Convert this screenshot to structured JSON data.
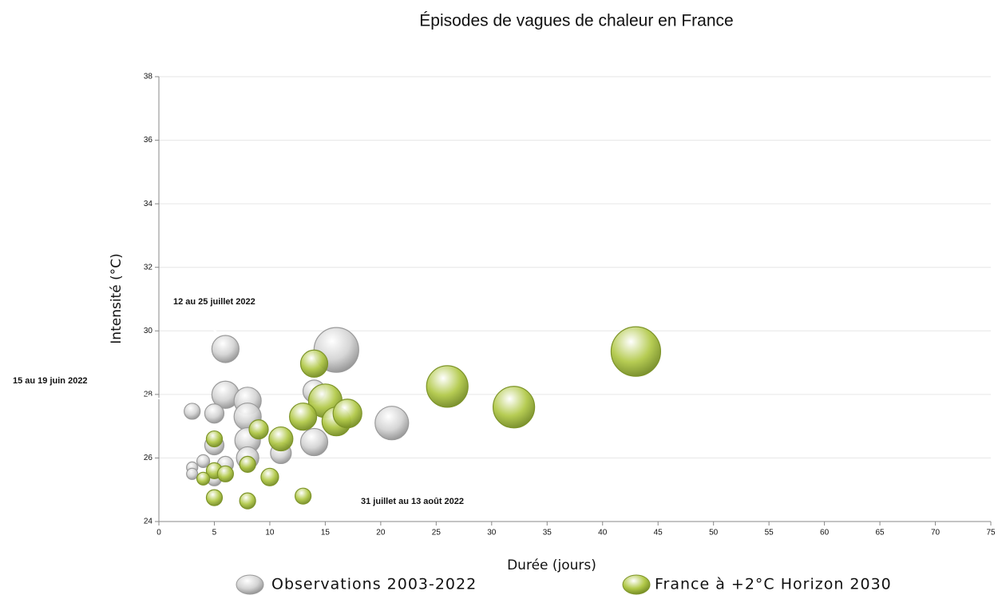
{
  "chart_data": {
    "type": "scatter",
    "title": "Épisodes de vagues de chaleur en France",
    "xlabel": "Durée  (jours)",
    "ylabel": "Intensité  (°C)",
    "xlim": [
      0,
      75
    ],
    "xticks": [
      0,
      5,
      10,
      15,
      20,
      25,
      30,
      35,
      40,
      45,
      50,
      55,
      60,
      65,
      70,
      75
    ],
    "ylim": [
      24,
      38
    ],
    "yticks": [
      24,
      26,
      28,
      30,
      32,
      34,
      36,
      38
    ],
    "grid": true,
    "annotations": [
      "12 au 25 juillet 2022",
      "15 au 19 juin 2022",
      "31 juillet au 13 août 2022"
    ],
    "series": [
      {
        "name": "Observations 2003-2022",
        "color": "#d4d4d4",
        "x": [
          3,
          6,
          6,
          8,
          8,
          8,
          8,
          5,
          5,
          4,
          3,
          3,
          6,
          5,
          11,
          14,
          14,
          16,
          21
        ],
        "values": [
          27.47,
          29.43,
          27.99,
          27.8,
          27.3,
          26.55,
          26.0,
          27.4,
          26.4,
          25.9,
          25.7,
          25.5,
          25.8,
          25.35,
          26.15,
          28.1,
          26.5,
          29.4,
          27.1
        ],
        "sizes": [
          10,
          17,
          17,
          17,
          17,
          16,
          14,
          12,
          12,
          8,
          7,
          7,
          10,
          9,
          13,
          14,
          17,
          28,
          21
        ]
      },
      {
        "name": "France à +2°C Horizon 2030",
        "color": "#b2c94a",
        "x": [
          14,
          15,
          16,
          17,
          13,
          11,
          9,
          5,
          8,
          5,
          6,
          4,
          10,
          5,
          8,
          13,
          26,
          32,
          43
        ],
        "values": [
          28.97,
          27.8,
          27.15,
          27.4,
          27.3,
          26.6,
          26.9,
          26.6,
          25.8,
          25.6,
          25.5,
          25.35,
          25.4,
          24.75,
          24.65,
          24.8,
          28.25,
          27.6,
          29.35
        ],
        "sizes": [
          17,
          21,
          18,
          18,
          17,
          15,
          12,
          10,
          10,
          10,
          10,
          8,
          11,
          10,
          10,
          10,
          26,
          26,
          31
        ]
      }
    ]
  }
}
